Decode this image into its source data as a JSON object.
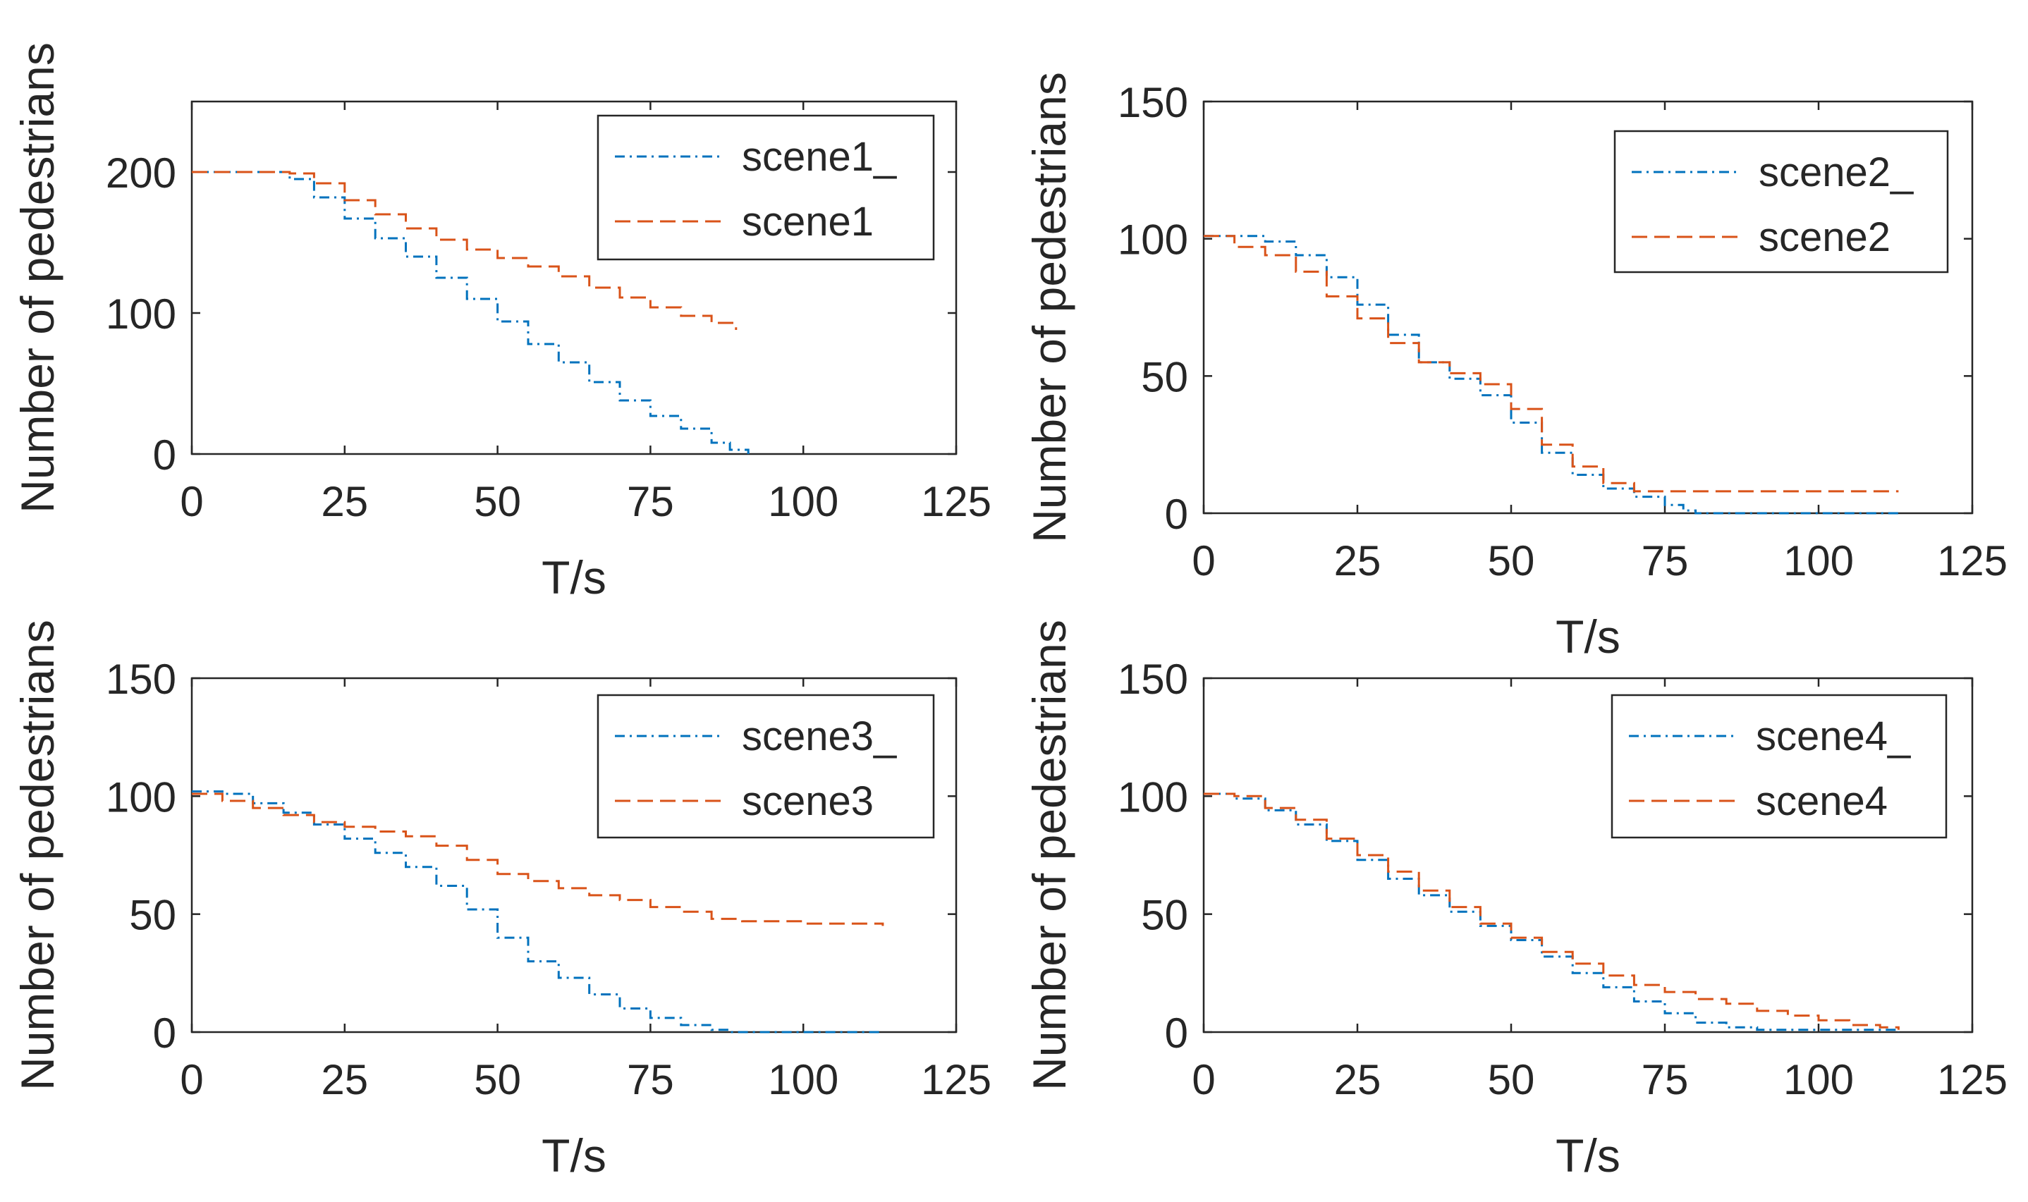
{
  "chart_data": [
    {
      "type": "line",
      "xlabel": "T/s",
      "ylabel": "Number of pedestrians",
      "xlim": [
        0,
        125
      ],
      "ylim": [
        0,
        250
      ],
      "xticks": [
        "0",
        "25",
        "50",
        "75",
        "100",
        "125"
      ],
      "yticks": [
        "0",
        "100",
        "200"
      ],
      "legend_position": "top-right",
      "series": [
        {
          "name": "scene1_",
          "style": "dash-dot",
          "color": "#0072BD",
          "x": [
            0,
            13,
            16,
            20,
            25,
            30,
            35,
            40,
            45,
            50,
            55,
            60,
            65,
            70,
            75,
            80,
            85,
            88,
            91
          ],
          "y": [
            200,
            200,
            195,
            182,
            167,
            153,
            140,
            125,
            110,
            94,
            78,
            65,
            51,
            38,
            27,
            18,
            8,
            3,
            0
          ]
        },
        {
          "name": "scene1",
          "style": "dashed",
          "color": "#D95319",
          "x": [
            0,
            13,
            16,
            20,
            25,
            30,
            35,
            40,
            45,
            50,
            55,
            60,
            65,
            70,
            75,
            80,
            85,
            89
          ],
          "y": [
            200,
            200,
            199,
            192,
            180,
            170,
            160,
            152,
            145,
            139,
            133,
            126,
            118,
            111,
            104,
            98,
            93,
            88
          ]
        }
      ]
    },
    {
      "type": "line",
      "xlabel": "T/s",
      "ylabel": "Number of pedestrians",
      "xlim": [
        0,
        125
      ],
      "ylim": [
        0,
        150
      ],
      "xticks": [
        "0",
        "25",
        "50",
        "75",
        "100",
        "125"
      ],
      "yticks": [
        "0",
        "50",
        "100",
        "150"
      ],
      "legend_position": "top-right",
      "series": [
        {
          "name": "scene2_",
          "style": "dash-dot",
          "color": "#0072BD",
          "x": [
            0,
            5,
            10,
            15,
            20,
            25,
            30,
            35,
            40,
            45,
            50,
            55,
            60,
            65,
            70,
            75,
            78,
            80,
            113
          ],
          "y": [
            101,
            101,
            99,
            94,
            86,
            76,
            65,
            55,
            49,
            43,
            33,
            22,
            14,
            9,
            6,
            3,
            1,
            0,
            0
          ]
        },
        {
          "name": "scene2",
          "style": "dashed",
          "color": "#D95319",
          "x": [
            0,
            5,
            10,
            15,
            20,
            25,
            30,
            35,
            40,
            45,
            50,
            55,
            60,
            65,
            70,
            75,
            113
          ],
          "y": [
            101,
            97,
            94,
            88,
            79,
            71,
            62,
            55,
            51,
            47,
            38,
            25,
            17,
            11,
            8,
            8,
            8
          ]
        }
      ]
    },
    {
      "type": "line",
      "xlabel": "T/s",
      "ylabel": "Number of pedestrians",
      "xlim": [
        0,
        125
      ],
      "ylim": [
        0,
        150
      ],
      "xticks": [
        "0",
        "25",
        "50",
        "75",
        "100",
        "125"
      ],
      "yticks": [
        "0",
        "50",
        "100",
        "150"
      ],
      "legend_position": "top-right",
      "series": [
        {
          "name": "scene3_",
          "style": "dash-dot",
          "color": "#0072BD",
          "x": [
            0,
            5,
            10,
            15,
            20,
            25,
            30,
            35,
            40,
            45,
            50,
            55,
            60,
            65,
            70,
            75,
            80,
            85,
            88,
            113
          ],
          "y": [
            102,
            101,
            97,
            93,
            88,
            82,
            76,
            70,
            62,
            52,
            40,
            30,
            23,
            16,
            10,
            6,
            3,
            1,
            0,
            0
          ]
        },
        {
          "name": "scene3",
          "style": "dashed",
          "color": "#D95319",
          "x": [
            0,
            5,
            10,
            15,
            20,
            25,
            30,
            35,
            40,
            45,
            50,
            55,
            60,
            65,
            70,
            75,
            80,
            85,
            90,
            100,
            113
          ],
          "y": [
            101,
            98,
            95,
            92,
            89,
            87,
            85,
            83,
            79,
            73,
            67,
            64,
            61,
            58,
            56,
            53,
            51,
            48,
            47,
            46,
            45
          ]
        }
      ]
    },
    {
      "type": "line",
      "xlabel": "T/s",
      "ylabel": "Number of pedestrians",
      "xlim": [
        0,
        125
      ],
      "ylim": [
        0,
        150
      ],
      "xticks": [
        "0",
        "25",
        "50",
        "75",
        "100",
        "125"
      ],
      "yticks": [
        "0",
        "50",
        "100",
        "150"
      ],
      "legend_position": "top-right",
      "series": [
        {
          "name": "scene4_",
          "style": "dash-dot",
          "color": "#0072BD",
          "x": [
            0,
            5,
            10,
            15,
            20,
            25,
            30,
            35,
            40,
            45,
            50,
            55,
            60,
            65,
            70,
            75,
            80,
            85,
            90,
            100,
            113
          ],
          "y": [
            101,
            99,
            94,
            88,
            81,
            73,
            65,
            58,
            51,
            45,
            39,
            32,
            25,
            19,
            13,
            8,
            4,
            2,
            1,
            1,
            0
          ]
        },
        {
          "name": "scene4",
          "style": "dashed",
          "color": "#D95319",
          "x": [
            0,
            5,
            10,
            15,
            20,
            25,
            30,
            35,
            40,
            45,
            50,
            55,
            60,
            65,
            70,
            75,
            80,
            85,
            90,
            95,
            100,
            105,
            110,
            113
          ],
          "y": [
            101,
            100,
            95,
            90,
            82,
            75,
            68,
            60,
            53,
            46,
            40,
            34,
            29,
            24,
            20,
            17,
            14,
            12,
            9,
            7,
            5,
            3,
            2,
            1
          ]
        }
      ]
    }
  ]
}
